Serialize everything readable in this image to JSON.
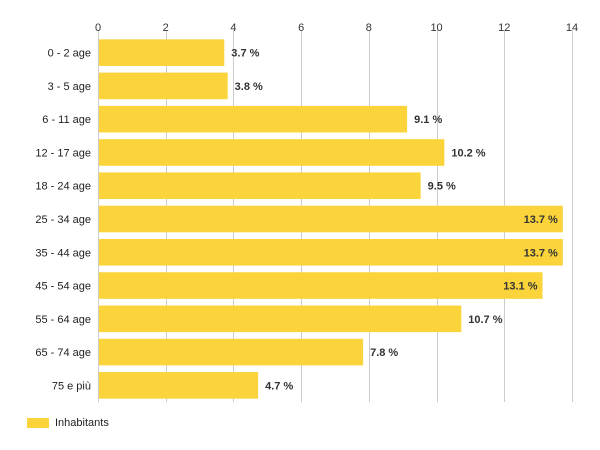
{
  "chart_data": {
    "type": "bar",
    "orientation": "horizontal",
    "title": "",
    "xlabel": "",
    "ylabel": "",
    "xlim": [
      0,
      14
    ],
    "xticks": [
      0,
      2,
      4,
      6,
      8,
      10,
      12,
      14
    ],
    "x_axis_position": "top",
    "grid": true,
    "legend_position": "bottom-left",
    "categories": [
      "0 - 2 age",
      "3 - 5 age",
      "6 - 11 age",
      "12 - 17 age",
      "18 - 24 age",
      "25 - 34 age",
      "35 - 44 age",
      "45 - 54 age",
      "55 - 64 age",
      "65 - 74 age",
      "75 e più"
    ],
    "series": [
      {
        "name": "Inhabitants",
        "color": "#fad43a",
        "values": [
          3.7,
          3.8,
          9.1,
          10.2,
          9.5,
          13.7,
          13.7,
          13.1,
          10.7,
          7.8,
          4.7
        ],
        "labels": [
          "3.7 %",
          "3.8 %",
          "9.1 %",
          "10.2 %",
          "9.5 %",
          "13.7 %",
          "13.7 %",
          "13.1 %",
          "10.7 %",
          "7.8 %",
          "4.7 %"
        ]
      }
    ]
  }
}
